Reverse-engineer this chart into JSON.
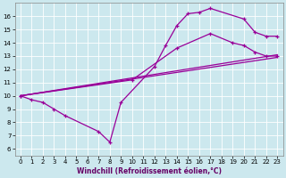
{
  "xlabel": "Windchill (Refroidissement éolien,°C)",
  "background_color": "#cce8ee",
  "line_color": "#990099",
  "xlim": [
    -0.5,
    23.5
  ],
  "ylim": [
    5.5,
    17.0
  ],
  "yticks": [
    6,
    7,
    8,
    9,
    10,
    11,
    12,
    13,
    14,
    15,
    16
  ],
  "xticks": [
    0,
    1,
    2,
    3,
    4,
    5,
    6,
    7,
    8,
    9,
    10,
    11,
    12,
    13,
    14,
    15,
    16,
    17,
    18,
    19,
    20,
    21,
    22,
    23
  ],
  "curve1_x": [
    0,
    1,
    2,
    3,
    4,
    7,
    8,
    9,
    12,
    13,
    14,
    15,
    16,
    17,
    20,
    21,
    22,
    23
  ],
  "curve1_y": [
    10,
    9.7,
    9.5,
    9.0,
    8.5,
    7.3,
    6.5,
    9.5,
    12.2,
    13.8,
    15.3,
    16.2,
    16.3,
    16.6,
    15.8,
    14.8,
    14.5,
    14.5
  ],
  "curve2_x": [
    0,
    23
  ],
  "curve2_y": [
    10.0,
    12.9
  ],
  "curve3_x": [
    0,
    23
  ],
  "curve3_y": [
    10.0,
    13.1
  ],
  "curve4_x": [
    0,
    10,
    14,
    17,
    19,
    20,
    21,
    22,
    23
  ],
  "curve4_y": [
    10.0,
    11.2,
    13.6,
    14.7,
    14.0,
    13.8,
    13.3,
    13.0,
    13.0
  ],
  "xlabel_fontsize": 5.5,
  "tick_fontsize": 5.0,
  "linewidth": 0.9,
  "markersize": 3.5
}
